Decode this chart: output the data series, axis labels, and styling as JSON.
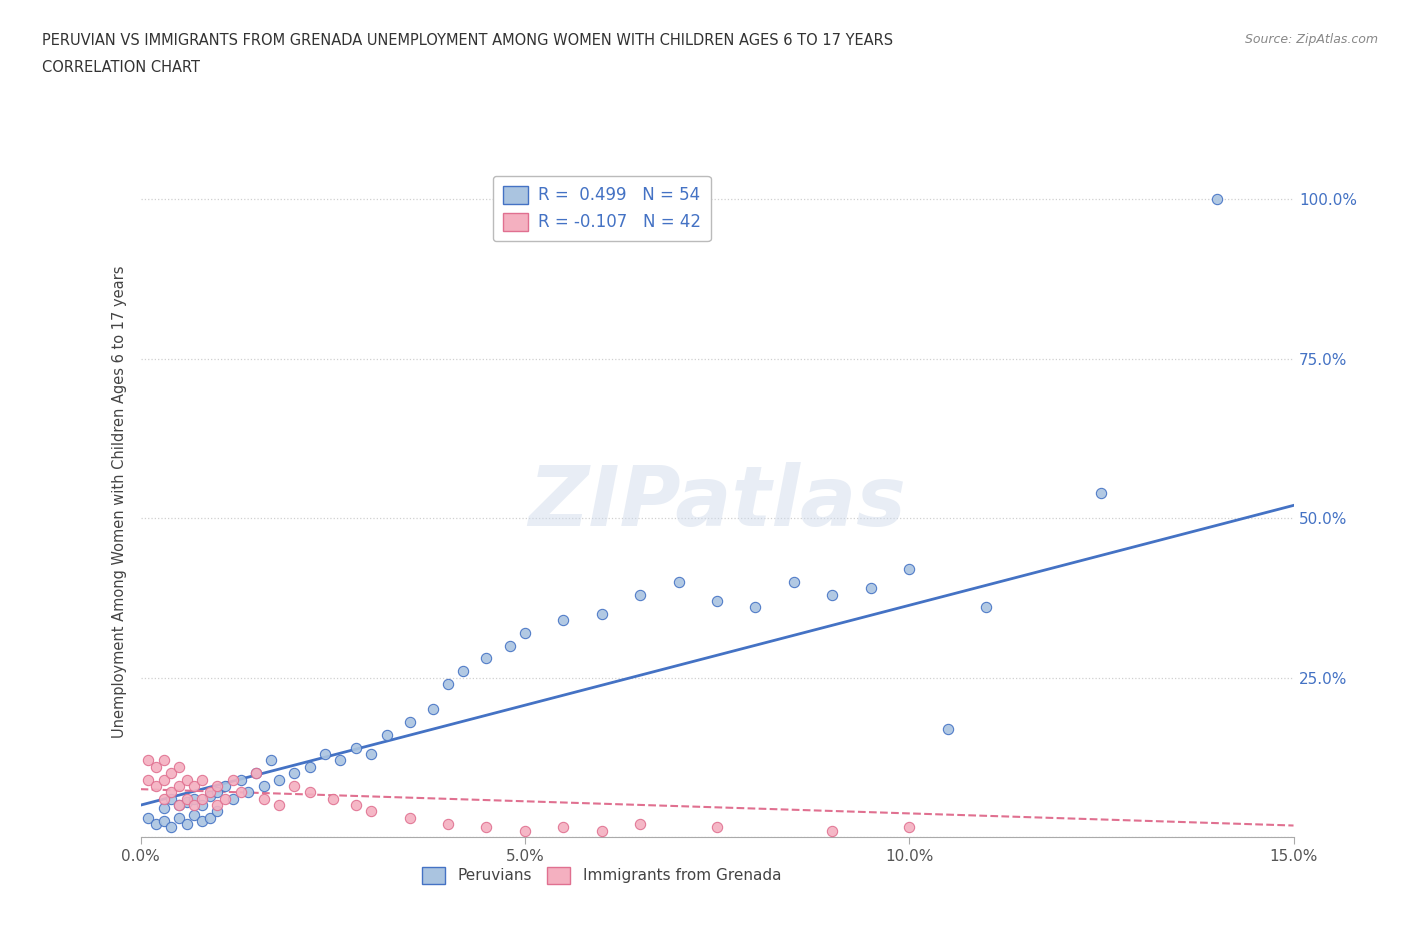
{
  "title_line1": "PERUVIAN VS IMMIGRANTS FROM GRENADA UNEMPLOYMENT AMONG WOMEN WITH CHILDREN AGES 6 TO 17 YEARS",
  "title_line2": "CORRELATION CHART",
  "source_text": "Source: ZipAtlas.com",
  "ylabel": "Unemployment Among Women with Children Ages 6 to 17 years",
  "xlim": [
    0.0,
    0.15
  ],
  "ylim": [
    0.0,
    1.05
  ],
  "yticks": [
    0.0,
    0.25,
    0.5,
    0.75,
    1.0
  ],
  "ytick_labels": [
    "",
    "25.0%",
    "50.0%",
    "75.0%",
    "100.0%"
  ],
  "xticks": [
    0.0,
    0.05,
    0.1,
    0.15
  ],
  "xtick_labels": [
    "0.0%",
    "5.0%",
    "10.0%",
    "15.0%"
  ],
  "watermark": "ZIPatlas",
  "peruvian_color": "#aac4e0",
  "grenada_color": "#f4b0c0",
  "peruvian_line_color": "#4472c4",
  "grenada_line_color": "#e07090",
  "legend_R1": "R =  0.499",
  "legend_N1": "N = 54",
  "legend_R2": "R = -0.107",
  "legend_N2": "N = 42",
  "legend_label1": "Peruvians",
  "legend_label2": "Immigrants from Grenada",
  "peruvian_x": [
    0.001,
    0.002,
    0.003,
    0.003,
    0.004,
    0.004,
    0.005,
    0.005,
    0.006,
    0.006,
    0.007,
    0.007,
    0.008,
    0.008,
    0.009,
    0.009,
    0.01,
    0.01,
    0.011,
    0.012,
    0.013,
    0.014,
    0.015,
    0.016,
    0.017,
    0.018,
    0.02,
    0.022,
    0.024,
    0.026,
    0.028,
    0.03,
    0.032,
    0.035,
    0.038,
    0.04,
    0.042,
    0.045,
    0.048,
    0.05,
    0.055,
    0.06,
    0.065,
    0.07,
    0.075,
    0.08,
    0.085,
    0.09,
    0.095,
    0.1,
    0.105,
    0.11,
    0.125,
    0.14
  ],
  "peruvian_y": [
    0.03,
    0.02,
    0.025,
    0.045,
    0.015,
    0.06,
    0.03,
    0.05,
    0.02,
    0.055,
    0.035,
    0.06,
    0.025,
    0.05,
    0.03,
    0.065,
    0.04,
    0.07,
    0.08,
    0.06,
    0.09,
    0.07,
    0.1,
    0.08,
    0.12,
    0.09,
    0.1,
    0.11,
    0.13,
    0.12,
    0.14,
    0.13,
    0.16,
    0.18,
    0.2,
    0.24,
    0.26,
    0.28,
    0.3,
    0.32,
    0.34,
    0.35,
    0.38,
    0.4,
    0.37,
    0.36,
    0.4,
    0.38,
    0.39,
    0.42,
    0.17,
    0.36,
    0.54,
    1.0
  ],
  "grenada_x": [
    0.001,
    0.001,
    0.002,
    0.002,
    0.003,
    0.003,
    0.003,
    0.004,
    0.004,
    0.005,
    0.005,
    0.005,
    0.006,
    0.006,
    0.007,
    0.007,
    0.008,
    0.008,
    0.009,
    0.01,
    0.01,
    0.011,
    0.012,
    0.013,
    0.015,
    0.016,
    0.018,
    0.02,
    0.022,
    0.025,
    0.028,
    0.03,
    0.035,
    0.04,
    0.045,
    0.05,
    0.055,
    0.06,
    0.065,
    0.075,
    0.09,
    0.1
  ],
  "grenada_y": [
    0.09,
    0.12,
    0.08,
    0.11,
    0.06,
    0.09,
    0.12,
    0.07,
    0.1,
    0.05,
    0.08,
    0.11,
    0.06,
    0.09,
    0.05,
    0.08,
    0.06,
    0.09,
    0.07,
    0.05,
    0.08,
    0.06,
    0.09,
    0.07,
    0.1,
    0.06,
    0.05,
    0.08,
    0.07,
    0.06,
    0.05,
    0.04,
    0.03,
    0.02,
    0.015,
    0.01,
    0.015,
    0.01,
    0.02,
    0.015,
    0.01,
    0.015
  ],
  "peruvian_trend_x0": 0.0,
  "peruvian_trend_y0": 0.05,
  "peruvian_trend_x1": 0.15,
  "peruvian_trend_y1": 0.52,
  "grenada_trend_x0": 0.0,
  "grenada_trend_y0": 0.075,
  "grenada_trend_x1": 0.15,
  "grenada_trend_y1": 0.018,
  "background_color": "#ffffff",
  "grid_color": "#d0d0d0"
}
